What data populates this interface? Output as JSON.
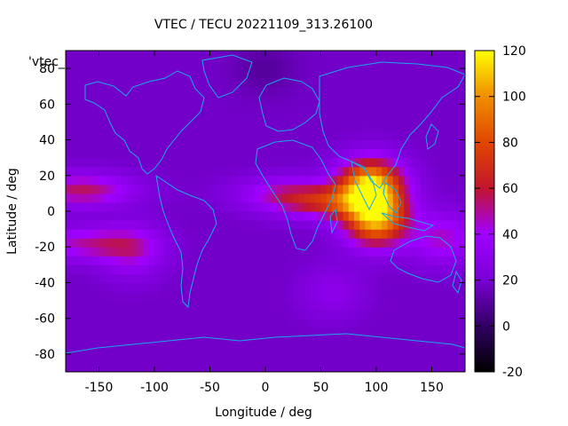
{
  "chart_data": {
    "type": "heatmap",
    "title": "VTEC / TECU 20221109_313.26100",
    "xlabel": "Longitude / deg",
    "ylabel": "Latitude / deg",
    "xlim": [
      -180,
      180
    ],
    "ylim": [
      -90,
      90
    ],
    "xticks": [
      -150,
      -100,
      -50,
      0,
      50,
      100,
      150
    ],
    "yticks": [
      -80,
      -60,
      -40,
      -20,
      0,
      20,
      40,
      60,
      80
    ],
    "xtick_labels": [
      "-150",
      "-100",
      "-50",
      "0",
      "50",
      "100",
      "150"
    ],
    "ytick_labels": [
      "-80",
      "-60",
      "-40",
      "-20",
      "0",
      "20",
      "40",
      "60",
      "80"
    ],
    "legend": "'vtec_",
    "colorbar": {
      "range": [
        -20,
        120
      ],
      "ticks": [
        -20,
        0,
        20,
        40,
        60,
        80,
        100,
        120
      ],
      "tick_labels": [
        "-20",
        "0",
        "20",
        "40",
        "60",
        "80",
        "100",
        "120"
      ]
    },
    "background_level": 18,
    "features": [
      {
        "name": "asian-crest-north",
        "lon": 95,
        "lat": 15,
        "value": 112
      },
      {
        "name": "asian-crest-south",
        "lon": 100,
        "lat": -5,
        "value": 100
      },
      {
        "name": "indian-ocean-band",
        "lon": 60,
        "lat": 5,
        "value": 58
      },
      {
        "name": "africa-band",
        "lon": 20,
        "lat": 10,
        "value": 45
      },
      {
        "name": "pacific-north-band",
        "lon": -165,
        "lat": 12,
        "value": 55
      },
      {
        "name": "pacific-south-band",
        "lon": -160,
        "lat": -18,
        "value": 48
      },
      {
        "name": "south-pacific-patch",
        "lon": -120,
        "lat": -22,
        "value": 42
      },
      {
        "name": "australia-east",
        "lon": 160,
        "lat": -15,
        "value": 45
      },
      {
        "name": "southern-ocean-patch",
        "lon": 60,
        "lat": -45,
        "value": 30
      },
      {
        "name": "high-latitude-low",
        "lon": 0,
        "lat": 80,
        "value": 10
      }
    ]
  }
}
